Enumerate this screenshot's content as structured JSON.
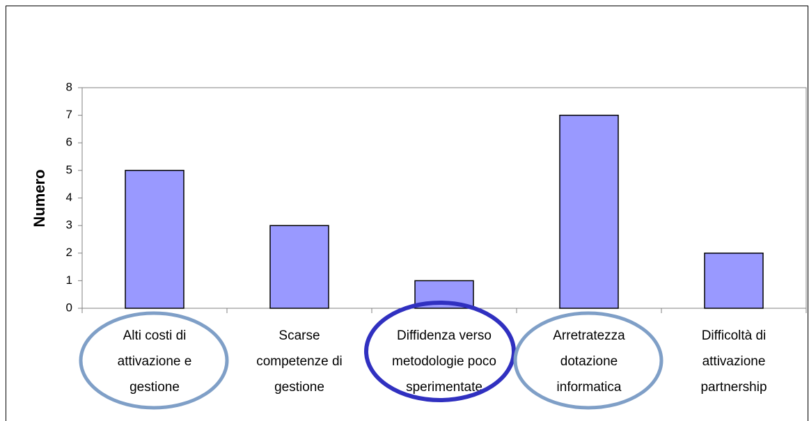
{
  "chart_data": {
    "type": "bar",
    "y_label": "Numero",
    "categories": [
      [
        "Alti costi di",
        "attivazione e",
        "gestione"
      ],
      [
        "Scarse",
        "competenze di",
        "gestione"
      ],
      [
        "Diffidenza verso",
        "metodologie poco",
        "sperimentate"
      ],
      [
        "Arretratezza",
        "dotazione",
        "informatica"
      ],
      [
        "Difficoltà di",
        "attivazione",
        "partnership"
      ]
    ],
    "values": [
      5,
      3,
      1,
      7,
      2
    ],
    "color": "#9999ff",
    "ylim": [
      0,
      8
    ],
    "yticks": [
      0,
      1,
      2,
      3,
      4,
      5,
      6,
      7,
      8
    ],
    "grid": false
  }
}
